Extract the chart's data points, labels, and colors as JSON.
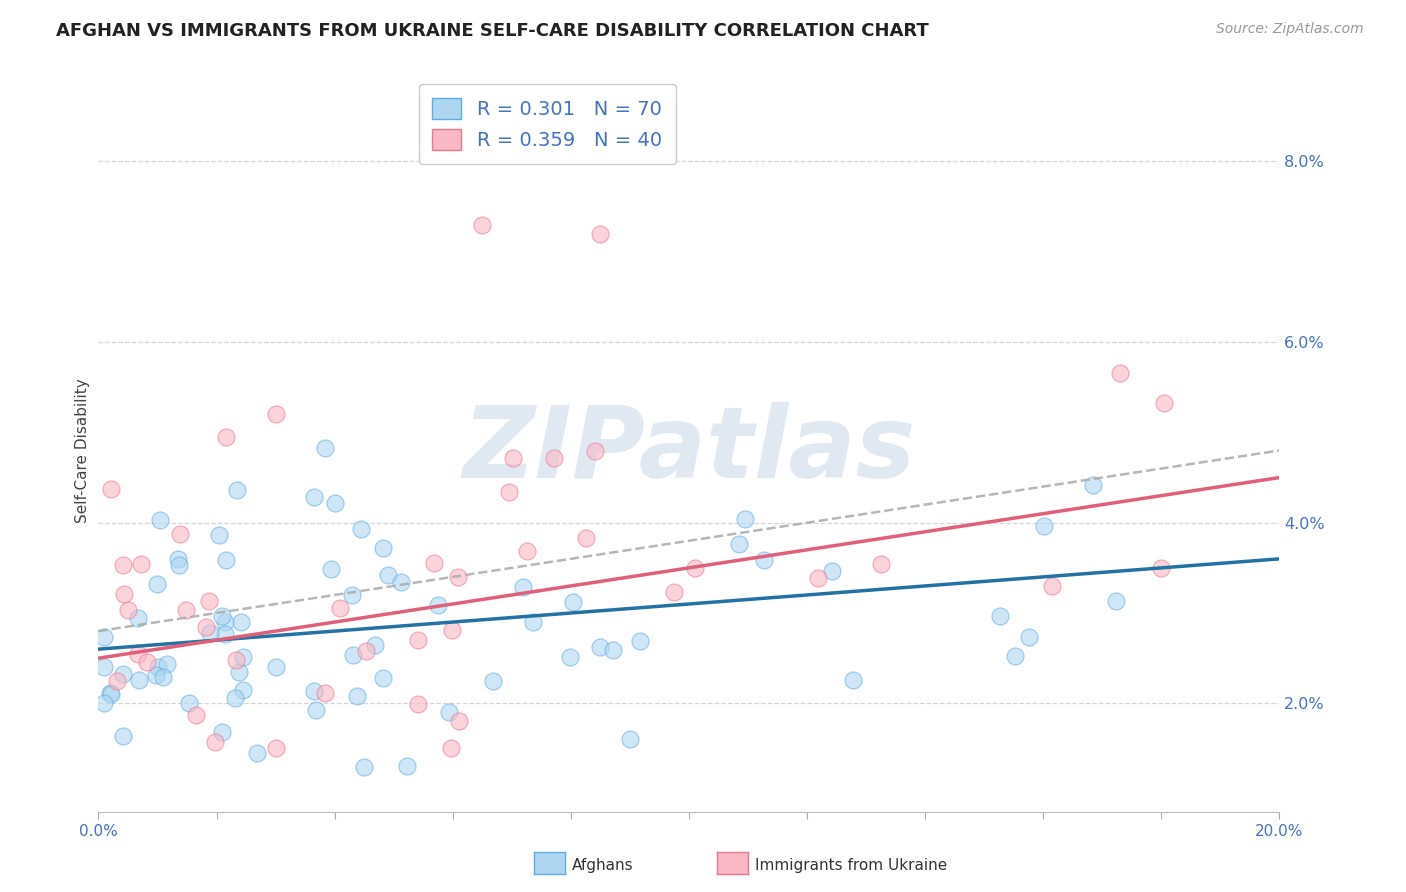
{
  "title": "AFGHAN VS IMMIGRANTS FROM UKRAINE SELF-CARE DISABILITY CORRELATION CHART",
  "source": "Source: ZipAtlas.com",
  "ylabel": "Self-Care Disability",
  "legend_r1": "R = 0.301",
  "legend_n1": "N = 70",
  "legend_r2": "R = 0.359",
  "legend_n2": "N = 40",
  "afghan_color": "#AED6F1",
  "afghan_edge": "#5DADE2",
  "ukraine_color": "#F9B8C4",
  "ukraine_edge": "#EC7590",
  "line_afghan": "#2471A3",
  "line_ukraine": "#E0607A",
  "line_dashed_color": "#AAAAAA",
  "watermark": "ZIPatlas",
  "watermark_color": "#C8D8E8",
  "xmin": 0.0,
  "xmax": 0.2,
  "ymin": 0.008,
  "ymax": 0.088,
  "yticks": [
    0.02,
    0.04,
    0.06,
    0.08
  ],
  "ytick_labels": [
    "2.0%",
    "4.0%",
    "6.0%",
    "8.0%"
  ],
  "background_color": "#FFFFFF",
  "grid_color": "#CCCCCC",
  "title_color": "#222222",
  "tick_color": "#4472C4",
  "bottom_label_color": "#333333",
  "afghan_label": "Afghans",
  "ukraine_label": "Immigrants from Ukraine"
}
